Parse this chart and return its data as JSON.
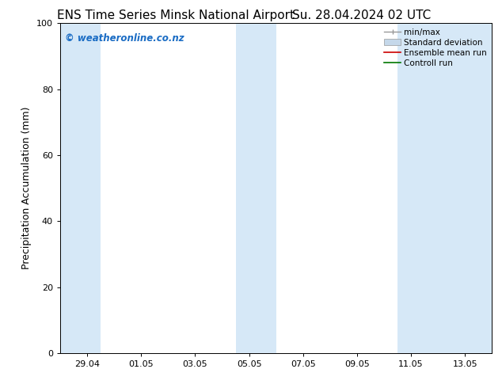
{
  "title_left": "ENS Time Series Minsk National Airport",
  "title_right": "Su. 28.04.2024 02 UTC",
  "ylabel": "Precipitation Accumulation (mm)",
  "ylim": [
    0,
    100
  ],
  "yticks": [
    0,
    20,
    40,
    60,
    80,
    100
  ],
  "xtick_labels": [
    "29.04",
    "01.05",
    "03.05",
    "05.05",
    "07.05",
    "09.05",
    "11.05",
    "13.05"
  ],
  "xlim": [
    0,
    16
  ],
  "shade_color": "#d6e8f7",
  "watermark_text": "© weatheronline.co.nz",
  "watermark_color": "#1a6cc4",
  "legend_labels": [
    "min/max",
    "Standard deviation",
    "Ensemble mean run",
    "Controll run"
  ],
  "legend_colors_line": [
    "#999999",
    "#c5d8ea",
    "#cc0000",
    "#007700"
  ],
  "background_color": "#ffffff",
  "title_fontsize": 11,
  "axis_fontsize": 9,
  "tick_fontsize": 8,
  "legend_fontsize": 7.5
}
